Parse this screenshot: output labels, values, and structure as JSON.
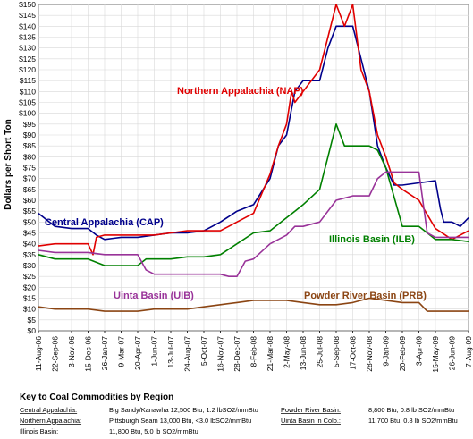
{
  "chart_data": {
    "type": "line",
    "title": "",
    "ylabel": "Dollars per Short Ton",
    "xlabel": "",
    "ylim": [
      0,
      150
    ],
    "y_ticks": [
      "$0",
      "$5",
      "$10",
      "$15",
      "$20",
      "$25",
      "$30",
      "$35",
      "$40",
      "$45",
      "$50",
      "$55",
      "$60",
      "$65",
      "$70",
      "$75",
      "$80",
      "$85",
      "$90",
      "$95",
      "$100",
      "$105",
      "$110",
      "$115",
      "$120",
      "$125",
      "$130",
      "$135",
      "$140",
      "$145",
      "$150"
    ],
    "x_ticks": [
      "11-Aug-06",
      "22-Sep-06",
      "3-Nov-06",
      "15-Dec-06",
      "26-Jan-07",
      "9-Mar-07",
      "20-Apr-07",
      "1-Jun-07",
      "13-Jul-07",
      "24-Aug-07",
      "5-Oct-07",
      "16-Nov-07",
      "28-Dec-07",
      "8-Feb-08",
      "21-Mar-08",
      "2-May-08",
      "13-Jun-08",
      "25-Jul-08",
      "5-Sep-08",
      "17-Oct-08",
      "28-Nov-08",
      "9-Jan-09",
      "20-Feb-09",
      "3-Apr-09",
      "15-May-09",
      "26-Jun-09",
      "7-Aug-09"
    ],
    "grid": true,
    "series": [
      {
        "name": "Central Appalachia (CAP)",
        "color": "#00008B",
        "values": [
          [
            0,
            54
          ],
          [
            1,
            48
          ],
          [
            2,
            47
          ],
          [
            3,
            47
          ],
          [
            3.5,
            44
          ],
          [
            4,
            42
          ],
          [
            5,
            43
          ],
          [
            6,
            43
          ],
          [
            7,
            44
          ],
          [
            8,
            45
          ],
          [
            9,
            45
          ],
          [
            10,
            46
          ],
          [
            11,
            50
          ],
          [
            12,
            55
          ],
          [
            13,
            58
          ],
          [
            14,
            70
          ],
          [
            14.5,
            85
          ],
          [
            15,
            90
          ],
          [
            15.5,
            110
          ],
          [
            16,
            115
          ],
          [
            17,
            115
          ],
          [
            17.5,
            130
          ],
          [
            18,
            140
          ],
          [
            19,
            140
          ],
          [
            19.5,
            125
          ],
          [
            20,
            110
          ],
          [
            20.5,
            85
          ],
          [
            21,
            75
          ],
          [
            21.5,
            67
          ],
          [
            22,
            67
          ],
          [
            23,
            68
          ],
          [
            24,
            69
          ],
          [
            24.3,
            56
          ],
          [
            24.5,
            50
          ],
          [
            25,
            50
          ],
          [
            25.5,
            48
          ],
          [
            26,
            52
          ]
        ]
      },
      {
        "name": "Northern Appalachia (NAP)",
        "color": "#E00000",
        "values": [
          [
            0,
            39
          ],
          [
            1,
            40
          ],
          [
            2,
            40
          ],
          [
            3,
            40
          ],
          [
            3.3,
            35
          ],
          [
            3.5,
            43
          ],
          [
            4,
            44
          ],
          [
            5,
            44
          ],
          [
            6,
            44
          ],
          [
            7,
            44
          ],
          [
            8,
            45
          ],
          [
            9,
            46
          ],
          [
            10,
            46
          ],
          [
            11,
            46
          ],
          [
            12,
            50
          ],
          [
            13,
            54
          ],
          [
            14,
            72
          ],
          [
            14.5,
            85
          ],
          [
            15,
            95
          ],
          [
            15.3,
            110
          ],
          [
            15.5,
            105
          ],
          [
            16,
            110
          ],
          [
            17,
            120
          ],
          [
            17.5,
            135
          ],
          [
            18,
            150
          ],
          [
            18.5,
            140
          ],
          [
            19,
            150
          ],
          [
            19.5,
            120
          ],
          [
            20,
            110
          ],
          [
            20.5,
            90
          ],
          [
            21,
            80
          ],
          [
            21.5,
            68
          ],
          [
            22,
            65
          ],
          [
            23,
            60
          ],
          [
            24,
            47
          ],
          [
            25,
            42
          ],
          [
            26,
            46
          ]
        ]
      },
      {
        "name": "Illinois Basin (ILB)",
        "color": "#008000",
        "values": [
          [
            0,
            35
          ],
          [
            1,
            33
          ],
          [
            2,
            33
          ],
          [
            3,
            33
          ],
          [
            4,
            30
          ],
          [
            5,
            30
          ],
          [
            6,
            30
          ],
          [
            6.5,
            33
          ],
          [
            7,
            33
          ],
          [
            8,
            33
          ],
          [
            9,
            34
          ],
          [
            10,
            34
          ],
          [
            11,
            35
          ],
          [
            12,
            40
          ],
          [
            13,
            45
          ],
          [
            14,
            46
          ],
          [
            15,
            52
          ],
          [
            15.5,
            55
          ],
          [
            16,
            58
          ],
          [
            17,
            65
          ],
          [
            17.5,
            80
          ],
          [
            18,
            95
          ],
          [
            18.5,
            85
          ],
          [
            19,
            85
          ],
          [
            20,
            85
          ],
          [
            20.5,
            83
          ],
          [
            21,
            75
          ],
          [
            22,
            48
          ],
          [
            23,
            48
          ],
          [
            24,
            42
          ],
          [
            25,
            42
          ],
          [
            26,
            41
          ]
        ]
      },
      {
        "name": "Uinta Basin (UIB)",
        "color": "#993399",
        "values": [
          [
            0,
            37
          ],
          [
            1,
            36
          ],
          [
            2,
            36
          ],
          [
            3,
            36
          ],
          [
            4,
            35
          ],
          [
            5,
            35
          ],
          [
            6,
            35
          ],
          [
            6.5,
            28
          ],
          [
            7,
            26
          ],
          [
            8,
            26
          ],
          [
            9,
            26
          ],
          [
            10,
            26
          ],
          [
            11,
            26
          ],
          [
            11.5,
            25
          ],
          [
            12,
            25
          ],
          [
            12.5,
            32
          ],
          [
            13,
            33
          ],
          [
            14,
            40
          ],
          [
            15,
            44
          ],
          [
            15.5,
            48
          ],
          [
            16,
            48
          ],
          [
            17,
            50
          ],
          [
            18,
            60
          ],
          [
            19,
            62
          ],
          [
            20,
            62
          ],
          [
            20.5,
            70
          ],
          [
            21,
            73
          ],
          [
            22,
            73
          ],
          [
            23,
            73
          ],
          [
            23.5,
            45
          ],
          [
            24,
            43
          ],
          [
            25,
            43
          ],
          [
            26,
            43
          ]
        ]
      },
      {
        "name": "Powder River Basin (PRB)",
        "color": "#8B4513",
        "values": [
          [
            0,
            11
          ],
          [
            1,
            10
          ],
          [
            2,
            10
          ],
          [
            3,
            10
          ],
          [
            4,
            9
          ],
          [
            5,
            9
          ],
          [
            6,
            9
          ],
          [
            7,
            10
          ],
          [
            8,
            10
          ],
          [
            9,
            10
          ],
          [
            10,
            11
          ],
          [
            11,
            12
          ],
          [
            12,
            13
          ],
          [
            13,
            14
          ],
          [
            14,
            14
          ],
          [
            15,
            14
          ],
          [
            16,
            13
          ],
          [
            17,
            12
          ],
          [
            18,
            12
          ],
          [
            19,
            13
          ],
          [
            20,
            15
          ],
          [
            21,
            14
          ],
          [
            22,
            13
          ],
          [
            23,
            13
          ],
          [
            23.5,
            9
          ],
          [
            24,
            9
          ],
          [
            25,
            9
          ],
          [
            26,
            9
          ]
        ]
      }
    ]
  },
  "key": {
    "title": "Key to Coal Commodities by Region",
    "rows": [
      {
        "name": "Central Appalachia:",
        "spec": "Big Sandy/Kanawha 12,500 Btu, 1.2 lbSO2/mmBtu"
      },
      {
        "name": "Northern Appalachia:",
        "spec": "Pittsburgh Seam 13,000 Btu, <3.0 lbSO2/mmBtu"
      },
      {
        "name": "Illinois Basin:",
        "spec": "11,800 Btu, 5.0 lb SO2/mmBtu"
      },
      {
        "name": "Powder River Basin:",
        "spec": "8,800 Btu, 0.8 lb SO2/mmBtu"
      },
      {
        "name": "Uinta Basin in Colo.:",
        "spec": "11,700 Btu, 0.8 lb SO2/mmBtu"
      }
    ]
  }
}
